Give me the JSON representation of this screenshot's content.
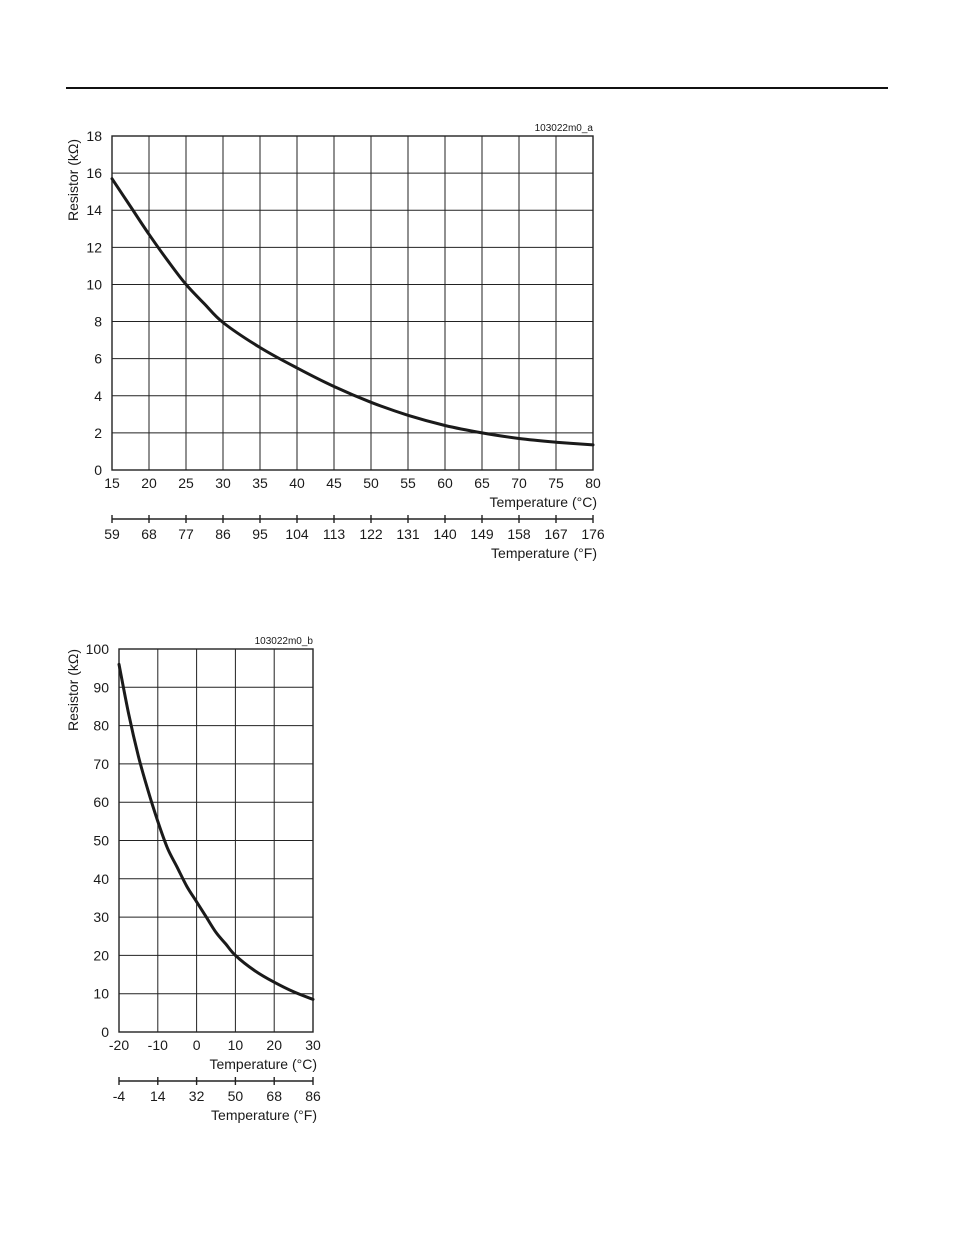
{
  "chart_data": [
    {
      "type": "line",
      "figure_code": "103022m0_a",
      "ylabel": "Resistor (kΩ)",
      "xlabel": "Temperature (°C)",
      "xlabel_secondary": "Temperature (°F)",
      "xlim": [
        15,
        80
      ],
      "ylim": [
        0,
        18
      ],
      "x_ticks": [
        15,
        20,
        25,
        30,
        35,
        40,
        45,
        50,
        55,
        60,
        65,
        70,
        75,
        80
      ],
      "y_ticks": [
        0,
        2,
        4,
        6,
        8,
        10,
        12,
        14,
        16,
        18
      ],
      "x_ticks_secondary": [
        "59",
        "68",
        "77",
        "86",
        "95",
        "104",
        "113",
        "122",
        "131",
        "140",
        "149",
        "158",
        "167",
        "176"
      ],
      "grid": true,
      "series": [
        {
          "x": [
            15,
            17.5,
            20,
            22.5,
            25,
            27.5,
            30,
            35,
            40,
            45,
            50,
            55,
            60,
            65,
            70,
            75,
            80
          ],
          "y": [
            15.7,
            14.2,
            12.7,
            11.3,
            10.0,
            8.95,
            7.95,
            6.6,
            5.5,
            4.5,
            3.65,
            2.95,
            2.4,
            2.0,
            1.7,
            1.5,
            1.35
          ]
        }
      ]
    },
    {
      "type": "line",
      "figure_code": "103022m0_b",
      "ylabel": "Resistor (kΩ)",
      "xlabel": "Temperature (°C)",
      "xlabel_secondary": "Temperature (°F)",
      "xlim": [
        -20,
        30
      ],
      "ylim": [
        0,
        100
      ],
      "x_ticks": [
        -20,
        -10,
        0,
        10,
        20,
        30
      ],
      "y_ticks": [
        0,
        10,
        20,
        30,
        40,
        50,
        60,
        70,
        80,
        90,
        100
      ],
      "x_ticks_secondary": [
        "-4",
        "14",
        "32",
        "50",
        "68",
        "86"
      ],
      "grid": true,
      "series": [
        {
          "x": [
            -20,
            -17.5,
            -15,
            -12.5,
            -10,
            -7.5,
            -5,
            -2.5,
            0,
            2.5,
            5,
            7.5,
            10,
            15,
            20,
            25,
            30
          ],
          "y": [
            96,
            83,
            72,
            63,
            55,
            48,
            43,
            38,
            34,
            30,
            26,
            23,
            20,
            16,
            13,
            10.5,
            8.5
          ]
        }
      ]
    }
  ]
}
